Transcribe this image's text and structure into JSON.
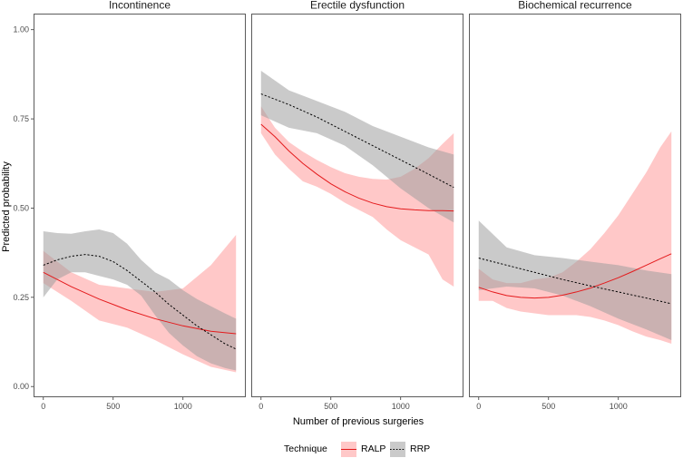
{
  "chart_data": {
    "type": "line",
    "xlabel": "Number of previous surgeries",
    "ylabel": "Predicted probability",
    "xlim": [
      -70,
      1450
    ],
    "ylim": [
      -0.03,
      1.045
    ],
    "x_ticks": [
      0,
      500,
      1000
    ],
    "x_tick_labels": [
      "0",
      "500",
      "1000"
    ],
    "y_ticks": [
      0,
      0.25,
      0.5,
      0.75,
      1.0
    ],
    "y_tick_labels": [
      "0.00",
      "0.25",
      "0.50",
      "0.75",
      "1.00"
    ],
    "legend": {
      "title": "Technique",
      "position": "bottom",
      "entries": [
        {
          "name": "RALP",
          "line": "solid",
          "color": "#e41a1c",
          "fill": "#ff9a9a"
        },
        {
          "name": "RRP",
          "line": "dotted",
          "color": "#000000",
          "fill": "#9e9e9e"
        }
      ]
    },
    "panels": [
      {
        "title": "Incontinence",
        "series": [
          {
            "name": "RALP",
            "x": [
              0,
              200,
              400,
              600,
              800,
              1000,
              1200,
              1380
            ],
            "y": [
              0.32,
              0.28,
              0.245,
              0.215,
              0.19,
              0.17,
              0.155,
              0.148
            ],
            "lower": [
              0.29,
              0.24,
              0.185,
              0.165,
              0.13,
              0.09,
              0.055,
              0.04
            ],
            "upper": [
              0.38,
              0.32,
              0.285,
              0.275,
              0.265,
              0.275,
              0.34,
              0.425
            ]
          },
          {
            "name": "RRP",
            "x": [
              0,
              100,
              200,
              300,
              400,
              500,
              600,
              700,
              800,
              900,
              1000,
              1100,
              1200,
              1300,
              1380
            ],
            "y": [
              0.34,
              0.355,
              0.365,
              0.37,
              0.365,
              0.35,
              0.325,
              0.295,
              0.265,
              0.23,
              0.2,
              0.17,
              0.145,
              0.12,
              0.105
            ],
            "lower": [
              0.25,
              0.3,
              0.32,
              0.32,
              0.31,
              0.3,
              0.285,
              0.255,
              0.2,
              0.15,
              0.115,
              0.085,
              0.065,
              0.052,
              0.045
            ],
            "upper": [
              0.435,
              0.43,
              0.428,
              0.435,
              0.44,
              0.43,
              0.4,
              0.355,
              0.32,
              0.3,
              0.27,
              0.245,
              0.225,
              0.205,
              0.19
            ]
          }
        ]
      },
      {
        "title": "Erectile dysfunction",
        "series": [
          {
            "name": "RALP",
            "x": [
              0,
              100,
              200,
              300,
              400,
              500,
              600,
              700,
              800,
              900,
              1000,
              1100,
              1200,
              1300,
              1380
            ],
            "y": [
              0.735,
              0.7,
              0.66,
              0.625,
              0.595,
              0.568,
              0.546,
              0.528,
              0.514,
              0.504,
              0.498,
              0.495,
              0.493,
              0.493,
              0.492
            ],
            "lower": [
              0.71,
              0.65,
              0.61,
              0.575,
              0.56,
              0.54,
              0.515,
              0.495,
              0.475,
              0.44,
              0.41,
              0.39,
              0.37,
              0.3,
              0.28
            ],
            "upper": [
              0.785,
              0.725,
              0.685,
              0.658,
              0.635,
              0.615,
              0.598,
              0.588,
              0.582,
              0.58,
              0.588,
              0.61,
              0.64,
              0.68,
              0.71
            ]
          },
          {
            "name": "RRP",
            "x": [
              0,
              200,
              400,
              600,
              800,
              1000,
              1200,
              1380
            ],
            "y": [
              0.82,
              0.79,
              0.755,
              0.715,
              0.675,
              0.635,
              0.595,
              0.558
            ],
            "lower": [
              0.76,
              0.725,
              0.71,
              0.675,
              0.62,
              0.555,
              0.5,
              0.46
            ],
            "upper": [
              0.885,
              0.83,
              0.8,
              0.77,
              0.73,
              0.7,
              0.67,
              0.65
            ]
          }
        ]
      },
      {
        "title": "Biochemical recurrence",
        "series": [
          {
            "name": "RALP",
            "x": [
              0,
              100,
              200,
              300,
              400,
              500,
              600,
              700,
              800,
              900,
              1000,
              1100,
              1200,
              1300,
              1380
            ],
            "y": [
              0.278,
              0.265,
              0.255,
              0.25,
              0.248,
              0.25,
              0.256,
              0.265,
              0.276,
              0.29,
              0.305,
              0.322,
              0.34,
              0.358,
              0.372
            ],
            "lower": [
              0.24,
              0.24,
              0.22,
              0.21,
              0.205,
              0.2,
              0.2,
              0.2,
              0.195,
              0.185,
              0.172,
              0.155,
              0.14,
              0.13,
              0.12
            ],
            "upper": [
              0.33,
              0.3,
              0.29,
              0.29,
              0.3,
              0.305,
              0.32,
              0.35,
              0.385,
              0.43,
              0.48,
              0.54,
              0.6,
              0.67,
              0.715
            ]
          },
          {
            "name": "RRP",
            "x": [
              0,
              200,
              400,
              600,
              800,
              1000,
              1200,
              1380
            ],
            "y": [
              0.36,
              0.34,
              0.32,
              0.3,
              0.282,
              0.265,
              0.248,
              0.232
            ],
            "lower": [
              0.27,
              0.28,
              0.275,
              0.255,
              0.225,
              0.19,
              0.16,
              0.13
            ],
            "upper": [
              0.465,
              0.39,
              0.368,
              0.36,
              0.35,
              0.34,
              0.325,
              0.315
            ]
          }
        ]
      }
    ]
  }
}
